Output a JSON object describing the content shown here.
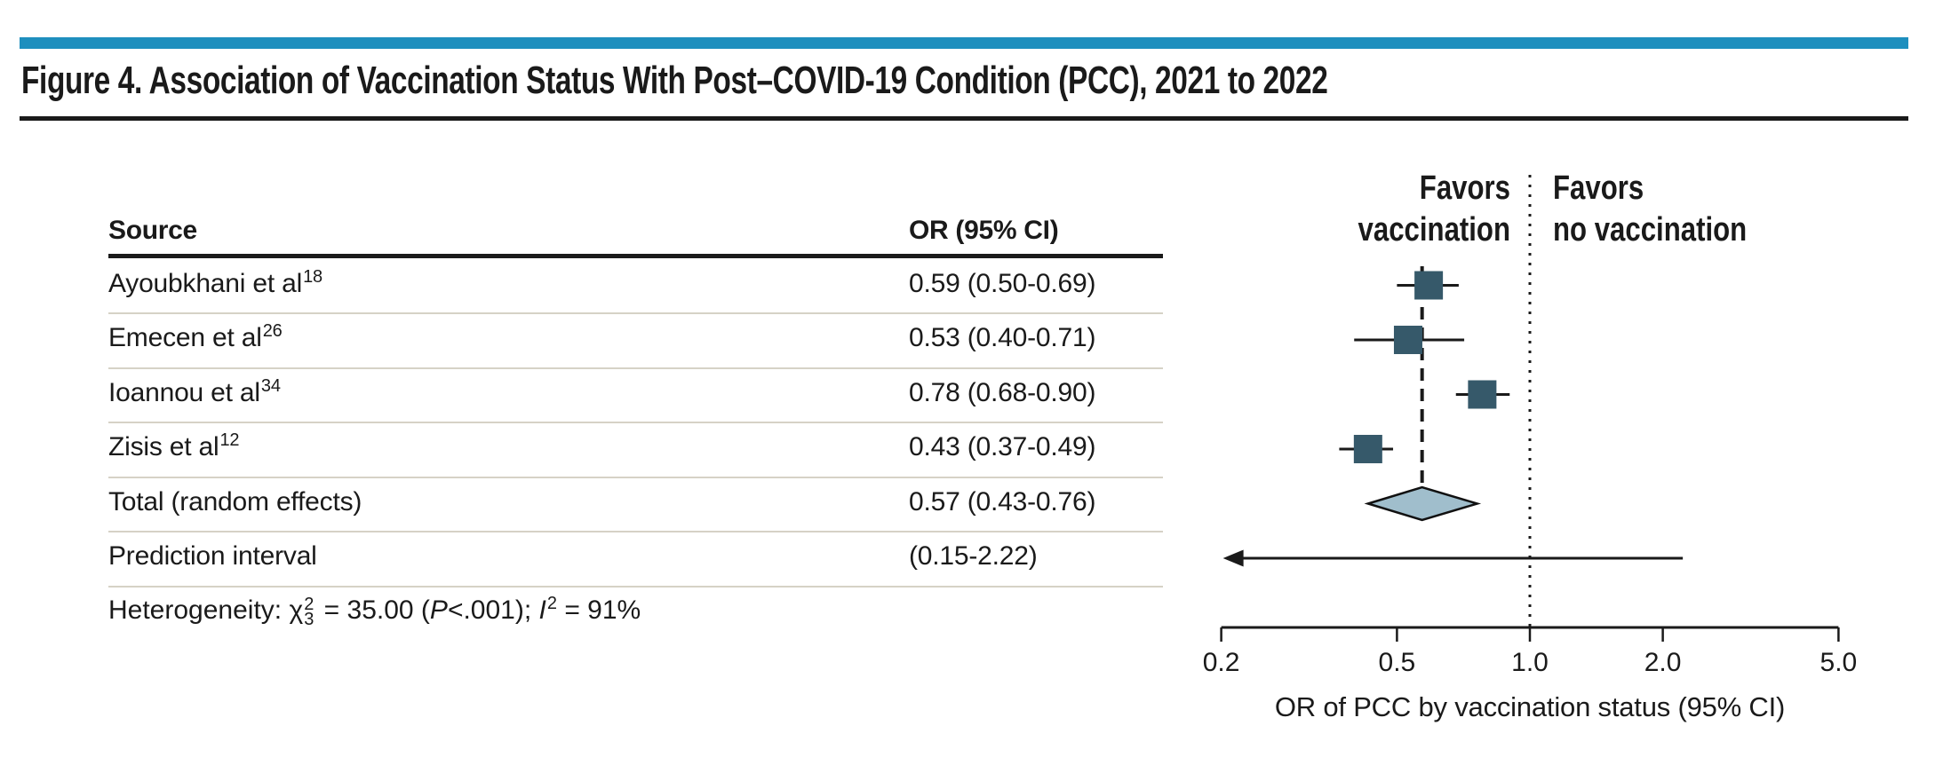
{
  "figure": {
    "title": "Figure 4. Association of Vaccination Status With Post–COVID-19 Condition (PCC), 2021 to 2022",
    "accent_bar_color": "#1E8FBE"
  },
  "table": {
    "columns": {
      "source": "Source",
      "or": "OR (95% CI)"
    },
    "rows": [
      {
        "source": "Ayoubkhani et al",
        "ref": "18",
        "or_ci": "0.59 (0.50-0.69)"
      },
      {
        "source": "Emecen et al",
        "ref": "26",
        "or_ci": "0.53 (0.40-0.71)"
      },
      {
        "source": "Ioannou et al",
        "ref": "34",
        "or_ci": "0.78 (0.68-0.90)"
      },
      {
        "source": "Zisis et al",
        "ref": "12",
        "or_ci": "0.43 (0.37-0.49)"
      },
      {
        "source": "Total (random effects)",
        "ref": "",
        "or_ci": "0.57 (0.43-0.76)"
      },
      {
        "source": "Prediction interval",
        "ref": "",
        "or_ci": "(0.15-2.22)"
      }
    ],
    "heterogeneity": {
      "prefix": "Heterogeneity: ",
      "chi": "χ",
      "chi_sup": "2",
      "chi_sub": "3",
      "equals_value": " = 35.00 (",
      "p_label": "P",
      "p_rest": "<.001); ",
      "i_label": "I",
      "i_sup": "2",
      "i_rest": " = 91%"
    }
  },
  "chart_data": {
    "type": "forest",
    "x_scale": "log",
    "x_min": 0.2,
    "x_max": 5.0,
    "x_ticks": [
      0.2,
      0.5,
      1.0,
      2.0,
      5.0
    ],
    "x_tick_labels": [
      "0.2",
      "0.5",
      "1.0",
      "2.0",
      "5.0"
    ],
    "x_label": "OR of PCC by vaccination status (95% CI)",
    "reference_or": 1.0,
    "summary_or": 0.57,
    "favors_left_line1": "Favors",
    "favors_left_line2": "vaccination",
    "favors_right_line1": "Favors",
    "favors_right_line2": "no vaccination",
    "studies": [
      {
        "name": "Ayoubkhani et al",
        "ref": "18",
        "or": 0.59,
        "ci_low": 0.5,
        "ci_high": 0.69
      },
      {
        "name": "Emecen et al",
        "ref": "26",
        "or": 0.53,
        "ci_low": 0.4,
        "ci_high": 0.71
      },
      {
        "name": "Ioannou et al",
        "ref": "34",
        "or": 0.78,
        "ci_low": 0.68,
        "ci_high": 0.9
      },
      {
        "name": "Zisis et al",
        "ref": "12",
        "or": 0.43,
        "ci_low": 0.37,
        "ci_high": 0.49
      }
    ],
    "total": {
      "label": "Total (random effects)",
      "or": 0.57,
      "ci_low": 0.43,
      "ci_high": 0.76
    },
    "prediction_interval": {
      "low": 0.15,
      "high": 2.22
    },
    "legend_position": "none",
    "grid": false,
    "colors": {
      "marker": "#36596A",
      "diamond_fill": "#A0BECC",
      "line": "#1A1A1A",
      "separator": "#D6D2C6"
    }
  }
}
